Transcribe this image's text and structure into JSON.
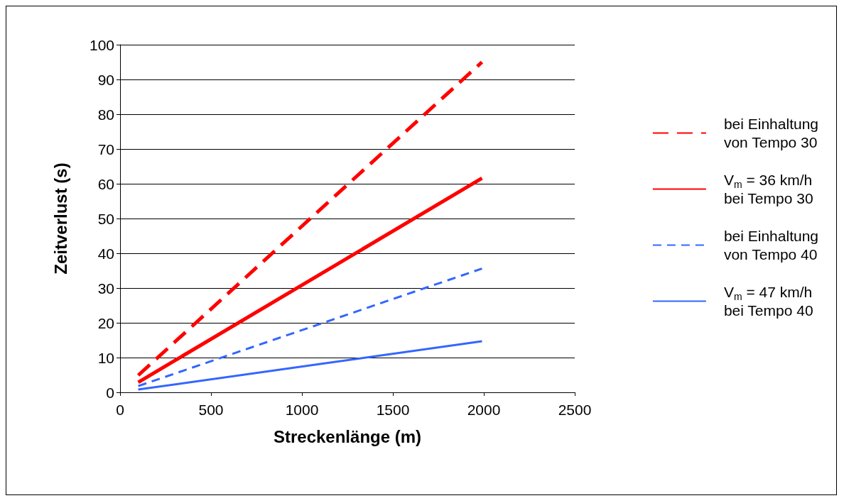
{
  "chart_data": {
    "type": "line",
    "xlabel": "Streckenlänge (m)",
    "ylabel": "Zeitverlust (s)",
    "xlim": [
      0,
      2500
    ],
    "xticks": [
      0,
      500,
      1000,
      1500,
      2000,
      2500
    ],
    "ylim": [
      0,
      100
    ],
    "yticks": [
      0,
      10,
      20,
      30,
      40,
      50,
      60,
      70,
      80,
      90,
      100
    ],
    "grid": "y",
    "x": [
      100,
      1990
    ],
    "legend": "right",
    "marker": "none",
    "series": [
      {
        "name": "bei Einhaltung\nvon Tempo 30",
        "color": "#ff0000",
        "line_style": "dashed",
        "values": [
          4.9,
          95
        ]
      },
      {
        "name": "V$_{m}$ = 36 km/h\nbei Tempo 30",
        "color": "#ff0000",
        "line_style": "solid",
        "values": [
          2.9,
          61.6
        ]
      },
      {
        "name": "bei Einhaltung\nvon Tempo 40",
        "color": "#3366ff",
        "line_style": "dashed",
        "values": [
          1.8,
          35.6
        ]
      },
      {
        "name": "V$_{m}$ = 47 km/h\nbei Tempo 40",
        "color": "#3366ff",
        "line_style": "solid",
        "values": [
          0.8,
          14.7
        ]
      }
    ]
  }
}
